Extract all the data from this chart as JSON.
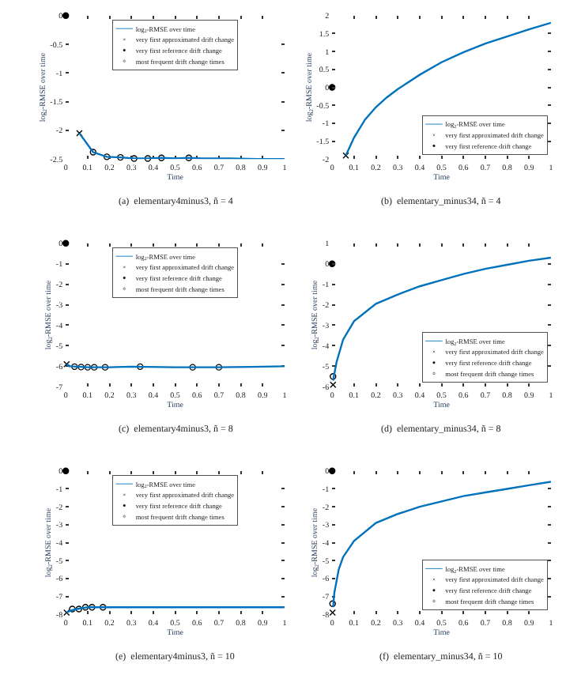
{
  "chart_data": [
    {
      "type": "line",
      "title": "(a)  elementary4minus3, ñ = 4",
      "xlabel": "Time",
      "ylabel": "log$_{2}$-RMSE over time",
      "xlim": [
        0,
        1
      ],
      "xticks": [
        0,
        0.1,
        0.2,
        0.3,
        0.4,
        0.5,
        0.6,
        0.7,
        0.8,
        0.9,
        1
      ],
      "ylim": [
        -2.5,
        0
      ],
      "yticks": [
        -2.5,
        -2,
        -1.5,
        -1,
        -0.5,
        0
      ],
      "legend": "top",
      "grid": false,
      "series": [
        {
          "name": "log$_{2}$-RMSE over time",
          "color": "#0072bd",
          "marker": "none",
          "x": [
            0.0625,
            0.125,
            0.1875,
            0.25,
            0.3125,
            0.375,
            0.4375,
            0.5,
            0.5625,
            0.625,
            0.75,
            0.875,
            1
          ],
          "values": [
            -2.05,
            -2.38,
            -2.46,
            -2.47,
            -2.49,
            -2.49,
            -2.48,
            -2.49,
            -2.48,
            -2.49,
            -2.49,
            -2.5,
            -2.5
          ]
        },
        {
          "name": "very first approximated drift change",
          "type": "scatter",
          "color": "#000000",
          "marker": "cross",
          "x": [
            0.0625
          ],
          "values": [
            -2.05
          ]
        },
        {
          "name": "very first reference drift change",
          "type": "scatter",
          "color": "#000000",
          "marker": "circle",
          "x": [
            0
          ],
          "values": [
            0
          ]
        },
        {
          "name": "most frequent drift change times",
          "type": "scatter",
          "color": "#ffffff",
          "marker": "circle",
          "x": [
            0.125,
            0.1875,
            0.25,
            0.3125,
            0.375,
            0.4375,
            0.5625
          ],
          "values": [
            -2.38,
            -2.46,
            -2.47,
            -2.49,
            -2.49,
            -2.48,
            -2.48
          ]
        }
      ]
    },
    {
      "type": "line",
      "title": "(b)  elementary_minus34, ñ = 4",
      "xlabel": "Time",
      "ylabel": "log$_{2}$-RMSE over time",
      "xlim": [
        0,
        1
      ],
      "xticks": [
        0,
        0.1,
        0.2,
        0.3,
        0.4,
        0.5,
        0.6,
        0.7,
        0.8,
        0.9,
        1
      ],
      "ylim": [
        -2,
        2
      ],
      "yticks": [
        -2,
        -1.5,
        -1,
        -0.5,
        0,
        0.5,
        1,
        1.5,
        2
      ],
      "legend": "bottom right",
      "grid": false,
      "series": [
        {
          "name": "log$_{2}$-RMSE over time",
          "color": "#0072bd",
          "marker": "none",
          "x": [
            0.0625,
            0.1,
            0.15,
            0.2,
            0.25,
            0.3,
            0.4,
            0.5,
            0.6,
            0.7,
            0.8,
            0.9,
            1
          ],
          "values": [
            -1.9,
            -1.4,
            -0.9,
            -0.55,
            -0.28,
            -0.05,
            0.35,
            0.7,
            0.98,
            1.22,
            1.42,
            1.62,
            1.8
          ]
        },
        {
          "name": "very first approximated drift change",
          "type": "scatter",
          "color": "#000000",
          "marker": "cross",
          "x": [
            0.0625
          ],
          "values": [
            -1.9
          ]
        },
        {
          "name": "very first reference drift change",
          "type": "scatter",
          "color": "#000000",
          "marker": "circle",
          "x": [
            0
          ],
          "values": [
            0
          ]
        }
      ]
    },
    {
      "type": "line",
      "title": "(c)  elementary4minus3, ñ = 8",
      "xlabel": "Time",
      "ylabel": "log$_{2}$-RMSE over time",
      "xlim": [
        0,
        1
      ],
      "xticks": [
        0,
        0.1,
        0.2,
        0.3,
        0.4,
        0.5,
        0.6,
        0.7,
        0.8,
        0.9,
        1
      ],
      "ylim": [
        -7,
        0
      ],
      "yticks": [
        -7,
        -6,
        -5,
        -4,
        -3,
        -2,
        -1,
        0
      ],
      "legend": "top",
      "grid": false,
      "series": [
        {
          "name": "log$_{2}$-RMSE over time",
          "color": "#0072bd",
          "marker": "none",
          "x": [
            0.004,
            0.02,
            0.1,
            0.2,
            0.3,
            0.5,
            0.7,
            0.85,
            1
          ],
          "values": [
            -5.9,
            -6.0,
            -6.05,
            -6.05,
            -6.02,
            -6.05,
            -6.05,
            -6.03,
            -6.0
          ]
        },
        {
          "name": "very first approximated drift change",
          "type": "scatter",
          "color": "#000000",
          "marker": "cross",
          "x": [
            0.004
          ],
          "values": [
            -5.9
          ]
        },
        {
          "name": "very first reference drift change",
          "type": "scatter",
          "color": "#000000",
          "marker": "circle",
          "x": [
            0
          ],
          "values": [
            0
          ]
        },
        {
          "name": "most frequent drift change times",
          "type": "scatter",
          "color": "#ffffff",
          "marker": "circle",
          "x": [
            0.04,
            0.07,
            0.1,
            0.13,
            0.18,
            0.34,
            0.58,
            0.7
          ],
          "values": [
            -6.02,
            -6.04,
            -6.05,
            -6.05,
            -6.05,
            -6.02,
            -6.05,
            -6.05
          ]
        }
      ]
    },
    {
      "type": "line",
      "title": "(d)  elementary_minus34, ñ = 8",
      "xlabel": "Time",
      "ylabel": "log$_{2}$-RMSE over time",
      "xlim": [
        0,
        1
      ],
      "xticks": [
        0,
        0.1,
        0.2,
        0.3,
        0.4,
        0.5,
        0.6,
        0.7,
        0.8,
        0.9,
        1
      ],
      "ylim": [
        -6,
        1
      ],
      "yticks": [
        -6,
        -5,
        -4,
        -3,
        -2,
        -1,
        0,
        1
      ],
      "legend": "bottom right",
      "grid": false,
      "series": [
        {
          "name": "log$_{2}$-RMSE over time",
          "color": "#0072bd",
          "marker": "none",
          "x": [
            0.004,
            0.02,
            0.05,
            0.1,
            0.2,
            0.3,
            0.4,
            0.5,
            0.6,
            0.7,
            0.8,
            0.9,
            1
          ],
          "values": [
            -5.7,
            -4.8,
            -3.7,
            -2.8,
            -1.95,
            -1.5,
            -1.1,
            -0.8,
            -0.5,
            -0.25,
            -0.05,
            0.15,
            0.3
          ]
        },
        {
          "name": "very first approximated drift change",
          "type": "scatter",
          "color": "#000000",
          "marker": "cross",
          "x": [
            0.004
          ],
          "values": [
            -5.9
          ]
        },
        {
          "name": "very first reference drift change",
          "type": "scatter",
          "color": "#000000",
          "marker": "circle",
          "x": [
            0
          ],
          "values": [
            0
          ]
        },
        {
          "name": "most frequent drift change times",
          "type": "scatter",
          "color": "#ffffff",
          "marker": "circle",
          "x": [
            0.004
          ],
          "values": [
            -5.5
          ]
        }
      ]
    },
    {
      "type": "line",
      "title": "(e)  elementary4minus3, ñ = 10",
      "xlabel": "Time",
      "ylabel": "log$_{2}$-RMSE over time",
      "xlim": [
        0,
        1
      ],
      "xticks": [
        0,
        0.1,
        0.2,
        0.3,
        0.4,
        0.5,
        0.6,
        0.7,
        0.8,
        0.9,
        1
      ],
      "ylim": [
        -8,
        0
      ],
      "yticks": [
        -8,
        -7,
        -6,
        -5,
        -4,
        -3,
        -2,
        -1,
        0
      ],
      "legend": "top",
      "grid": false,
      "series": [
        {
          "name": "log$_{2}$-RMSE over time",
          "color": "#0072bd",
          "marker": "none",
          "x": [
            0.004,
            0.02,
            0.05,
            0.1,
            0.2,
            0.4,
            0.6,
            0.8,
            1
          ],
          "values": [
            -7.9,
            -7.8,
            -7.7,
            -7.6,
            -7.6,
            -7.6,
            -7.6,
            -7.6,
            -7.6
          ]
        },
        {
          "name": "very first approximated drift change",
          "type": "scatter",
          "color": "#000000",
          "marker": "cross",
          "x": [
            0.004
          ],
          "values": [
            -7.9
          ]
        },
        {
          "name": "very first reference drift change",
          "type": "scatter",
          "color": "#000000",
          "marker": "circle",
          "x": [
            0
          ],
          "values": [
            0
          ]
        },
        {
          "name": "most frequent drift change times",
          "type": "scatter",
          "color": "#ffffff",
          "marker": "circle",
          "x": [
            0.03,
            0.06,
            0.09,
            0.12,
            0.17
          ],
          "values": [
            -7.7,
            -7.7,
            -7.6,
            -7.6,
            -7.6
          ]
        }
      ]
    },
    {
      "type": "line",
      "title": "(f)  elementary_minus34, ñ = 10",
      "xlabel": "Time",
      "ylabel": "log$_{2}$-RMSE over time",
      "xlim": [
        0,
        1
      ],
      "xticks": [
        0,
        0.1,
        0.2,
        0.3,
        0.4,
        0.5,
        0.6,
        0.7,
        0.8,
        0.9,
        1
      ],
      "ylim": [
        -8,
        0
      ],
      "yticks": [
        -8,
        -7,
        -6,
        -5,
        -4,
        -3,
        -2,
        -1,
        0
      ],
      "legend": "bottom right",
      "grid": false,
      "series": [
        {
          "name": "log$_{2}$-RMSE over time",
          "color": "#0072bd",
          "marker": "none",
          "x": [
            0.004,
            0.01,
            0.03,
            0.05,
            0.1,
            0.2,
            0.3,
            0.4,
            0.5,
            0.6,
            0.7,
            0.8,
            0.9,
            1
          ],
          "values": [
            -7.6,
            -6.8,
            -5.5,
            -4.8,
            -3.9,
            -2.9,
            -2.4,
            -2.0,
            -1.7,
            -1.4,
            -1.2,
            -1.0,
            -0.8,
            -0.6
          ]
        },
        {
          "name": "very first approximated drift change",
          "type": "scatter",
          "color": "#000000",
          "marker": "cross",
          "x": [
            0.002
          ],
          "values": [
            -7.9
          ]
        },
        {
          "name": "very first reference drift change",
          "type": "scatter",
          "color": "#000000",
          "marker": "circle",
          "x": [
            0
          ],
          "values": [
            0
          ]
        },
        {
          "name": "most frequent drift change times",
          "type": "scatter",
          "color": "#ffffff",
          "marker": "circle",
          "x": [
            0.002
          ],
          "values": [
            -7.4
          ]
        }
      ]
    }
  ]
}
